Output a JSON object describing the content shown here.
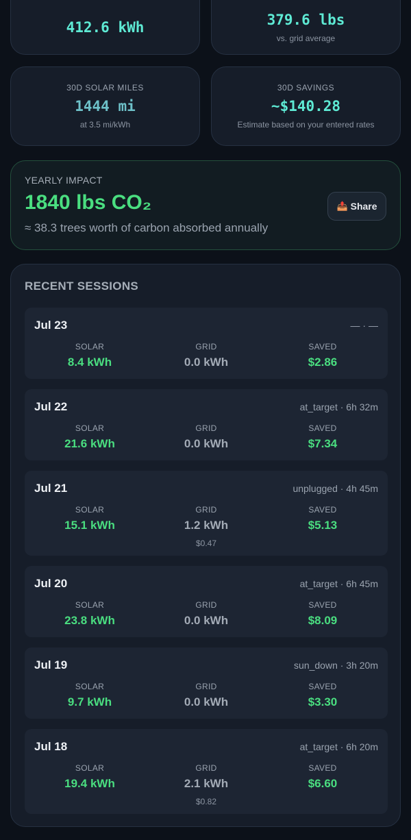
{
  "top_cards": [
    {
      "value": "412.6 kWh",
      "sub": ""
    },
    {
      "value": "379.6 lbs",
      "sub": "vs. grid average"
    }
  ],
  "solar_miles": {
    "label": "30D SOLAR MILES",
    "value": "1444 mi",
    "sub": "at 3.5 mi/kWh"
  },
  "savings": {
    "label": "30D SAVINGS",
    "value": "~$140.28",
    "sub": "Estimate based on your entered rates"
  },
  "yearly_impact": {
    "label": "YEARLY IMPACT",
    "value": "1840 lbs CO₂",
    "sub": "≈ 38.3 trees worth of carbon absorbed annually",
    "share_label": "Share",
    "share_icon": "📤"
  },
  "recent_sessions": {
    "title": "RECENT SESSIONS",
    "col_labels": {
      "solar": "SOLAR",
      "grid": "GRID",
      "saved": "SAVED"
    },
    "items": [
      {
        "date": "Jul 23",
        "status": "— · —",
        "solar": "8.4 kWh",
        "grid": "0.0 kWh",
        "grid_cost": "",
        "saved": "$2.86"
      },
      {
        "date": "Jul 22",
        "status": "at_target · 6h 32m",
        "solar": "21.6 kWh",
        "grid": "0.0 kWh",
        "grid_cost": "",
        "saved": "$7.34"
      },
      {
        "date": "Jul 21",
        "status": "unplugged · 4h 45m",
        "solar": "15.1 kWh",
        "grid": "1.2 kWh",
        "grid_cost": "$0.47",
        "saved": "$5.13"
      },
      {
        "date": "Jul 20",
        "status": "at_target · 6h 45m",
        "solar": "23.8 kWh",
        "grid": "0.0 kWh",
        "grid_cost": "",
        "saved": "$8.09"
      },
      {
        "date": "Jul 19",
        "status": "sun_down · 3h 20m",
        "solar": "9.7 kWh",
        "grid": "0.0 kWh",
        "grid_cost": "",
        "saved": "$3.30"
      },
      {
        "date": "Jul 18",
        "status": "at_target · 6h 20m",
        "solar": "19.4 kWh",
        "grid": "2.1 kWh",
        "grid_cost": "$0.82",
        "saved": "$6.60"
      }
    ]
  },
  "colors": {
    "accent_green": "#4ade80",
    "background": "#0c1119",
    "card": "#161d29",
    "session": "#1d2533"
  }
}
